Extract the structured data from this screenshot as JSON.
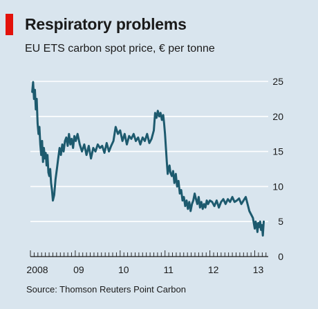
{
  "chart_data": {
    "type": "line",
    "title": "Respiratory problems",
    "subtitle": "EU ETS carbon spot price, € per tonne",
    "source": "Source: Thomson Reuters Point Carbon",
    "xlabel": "",
    "ylabel": "",
    "unit": "€ per tonne",
    "xlim": [
      2008.0,
      2013.3
    ],
    "ylim": [
      0,
      25
    ],
    "y_ticks": [
      0,
      5,
      10,
      15,
      20,
      25
    ],
    "y_tick_labels": [
      "0",
      "5",
      "10",
      "15",
      "20",
      "25"
    ],
    "x_ticks": [
      2008.0,
      2009.0,
      2010.0,
      2011.0,
      2012.0,
      2013.0
    ],
    "x_tick_labels": [
      "2008",
      "09",
      "10",
      "11",
      "12",
      "13"
    ],
    "grid": true,
    "y_axis_side": "right",
    "line_color": "#1d5a6e",
    "background_color": "#d9e5ee",
    "accent_color": "#e3120b",
    "series": [
      {
        "x": [
          2008.04,
          2008.06,
          2008.08,
          2008.1,
          2008.12,
          2008.14,
          2008.16,
          2008.18,
          2008.2,
          2008.22,
          2008.24,
          2008.26,
          2008.28,
          2008.3,
          2008.32,
          2008.34,
          2008.36,
          2008.38,
          2008.4,
          2008.42,
          2008.44,
          2008.46,
          2008.48,
          2008.5,
          2008.53,
          2008.56,
          2008.59,
          2008.62,
          2008.65,
          2008.68,
          2008.71,
          2008.74,
          2008.77,
          2008.8,
          2008.83,
          2008.86,
          2008.89,
          2008.92,
          2008.95,
          2008.98,
          2009.01,
          2009.05,
          2009.1,
          2009.15,
          2009.2,
          2009.25,
          2009.3,
          2009.35,
          2009.4,
          2009.45,
          2009.5,
          2009.55,
          2009.6,
          2009.65,
          2009.7,
          2009.75,
          2009.8,
          2009.85,
          2009.9,
          2009.95,
          2010.0,
          2010.05,
          2010.1,
          2010.15,
          2010.2,
          2010.25,
          2010.3,
          2010.35,
          2010.4,
          2010.45,
          2010.5,
          2010.55,
          2010.6,
          2010.65,
          2010.7,
          2010.75,
          2010.78,
          2010.81,
          2010.84,
          2010.87,
          2010.9,
          2010.93,
          2010.96,
          2010.98,
          2011.0,
          2011.02,
          2011.04,
          2011.06,
          2011.08,
          2011.1,
          2011.12,
          2011.15,
          2011.18,
          2011.21,
          2011.24,
          2011.27,
          2011.3,
          2011.33,
          2011.36,
          2011.39,
          2011.42,
          2011.45,
          2011.48,
          2011.51,
          2011.54,
          2011.57,
          2011.6,
          2011.63,
          2011.66,
          2011.69,
          2011.72,
          2011.75,
          2011.78,
          2011.81,
          2011.84,
          2011.87,
          2011.9,
          2011.93,
          2011.96,
          2012.0,
          2012.05,
          2012.1,
          2012.15,
          2012.2,
          2012.25,
          2012.3,
          2012.35,
          2012.4,
          2012.45,
          2012.5,
          2012.55,
          2012.6,
          2012.65,
          2012.7,
          2012.75,
          2012.8,
          2012.84,
          2012.88,
          2012.92,
          2012.96,
          2013.0,
          2013.02,
          2013.04,
          2013.06,
          2013.08,
          2013.1,
          2013.12,
          2013.14,
          2013.16,
          2013.18,
          2013.2
        ],
        "values": [
          23.5,
          24.9,
          22.5,
          23.8,
          21.0,
          22.5,
          19.0,
          17.5,
          18.5,
          16.0,
          14.5,
          16.5,
          13.5,
          15.5,
          14.0,
          14.8,
          13.0,
          14.5,
          12.0,
          11.5,
          12.5,
          10.5,
          9.5,
          8.0,
          8.8,
          11.0,
          12.5,
          14.0,
          15.5,
          14.5,
          16.0,
          15.0,
          16.5,
          17.0,
          15.8,
          17.5,
          16.0,
          16.8,
          15.5,
          17.2,
          16.5,
          17.5,
          16.0,
          15.0,
          16.0,
          14.5,
          15.8,
          14.0,
          15.5,
          15.0,
          16.0,
          15.5,
          15.8,
          14.8,
          16.2,
          15.0,
          15.8,
          16.5,
          18.5,
          17.5,
          18.0,
          16.5,
          17.5,
          16.0,
          17.2,
          16.8,
          17.5,
          16.5,
          17.0,
          16.0,
          17.0,
          16.5,
          17.5,
          16.2,
          16.8,
          18.0,
          20.5,
          19.8,
          20.8,
          20.0,
          20.5,
          19.5,
          20.2,
          19.0,
          17.5,
          15.5,
          13.5,
          11.8,
          12.5,
          13.0,
          12.0,
          11.5,
          12.2,
          10.5,
          11.8,
          10.0,
          10.8,
          9.0,
          9.5,
          8.0,
          8.5,
          7.2,
          8.0,
          6.8,
          7.8,
          6.5,
          7.5,
          8.0,
          9.0,
          8.2,
          7.5,
          8.5,
          7.0,
          7.8,
          6.8,
          7.5,
          7.0,
          8.0,
          7.5,
          8.0,
          7.8,
          7.2,
          8.0,
          7.0,
          7.8,
          8.2,
          7.5,
          8.2,
          7.8,
          8.5,
          7.8,
          8.0,
          8.3,
          7.5,
          8.0,
          8.5,
          7.5,
          6.5,
          6.0,
          5.5,
          4.0,
          5.0,
          4.5,
          3.5,
          4.8,
          4.2,
          5.0,
          3.8,
          4.5,
          3.0,
          5.0
        ]
      }
    ]
  }
}
